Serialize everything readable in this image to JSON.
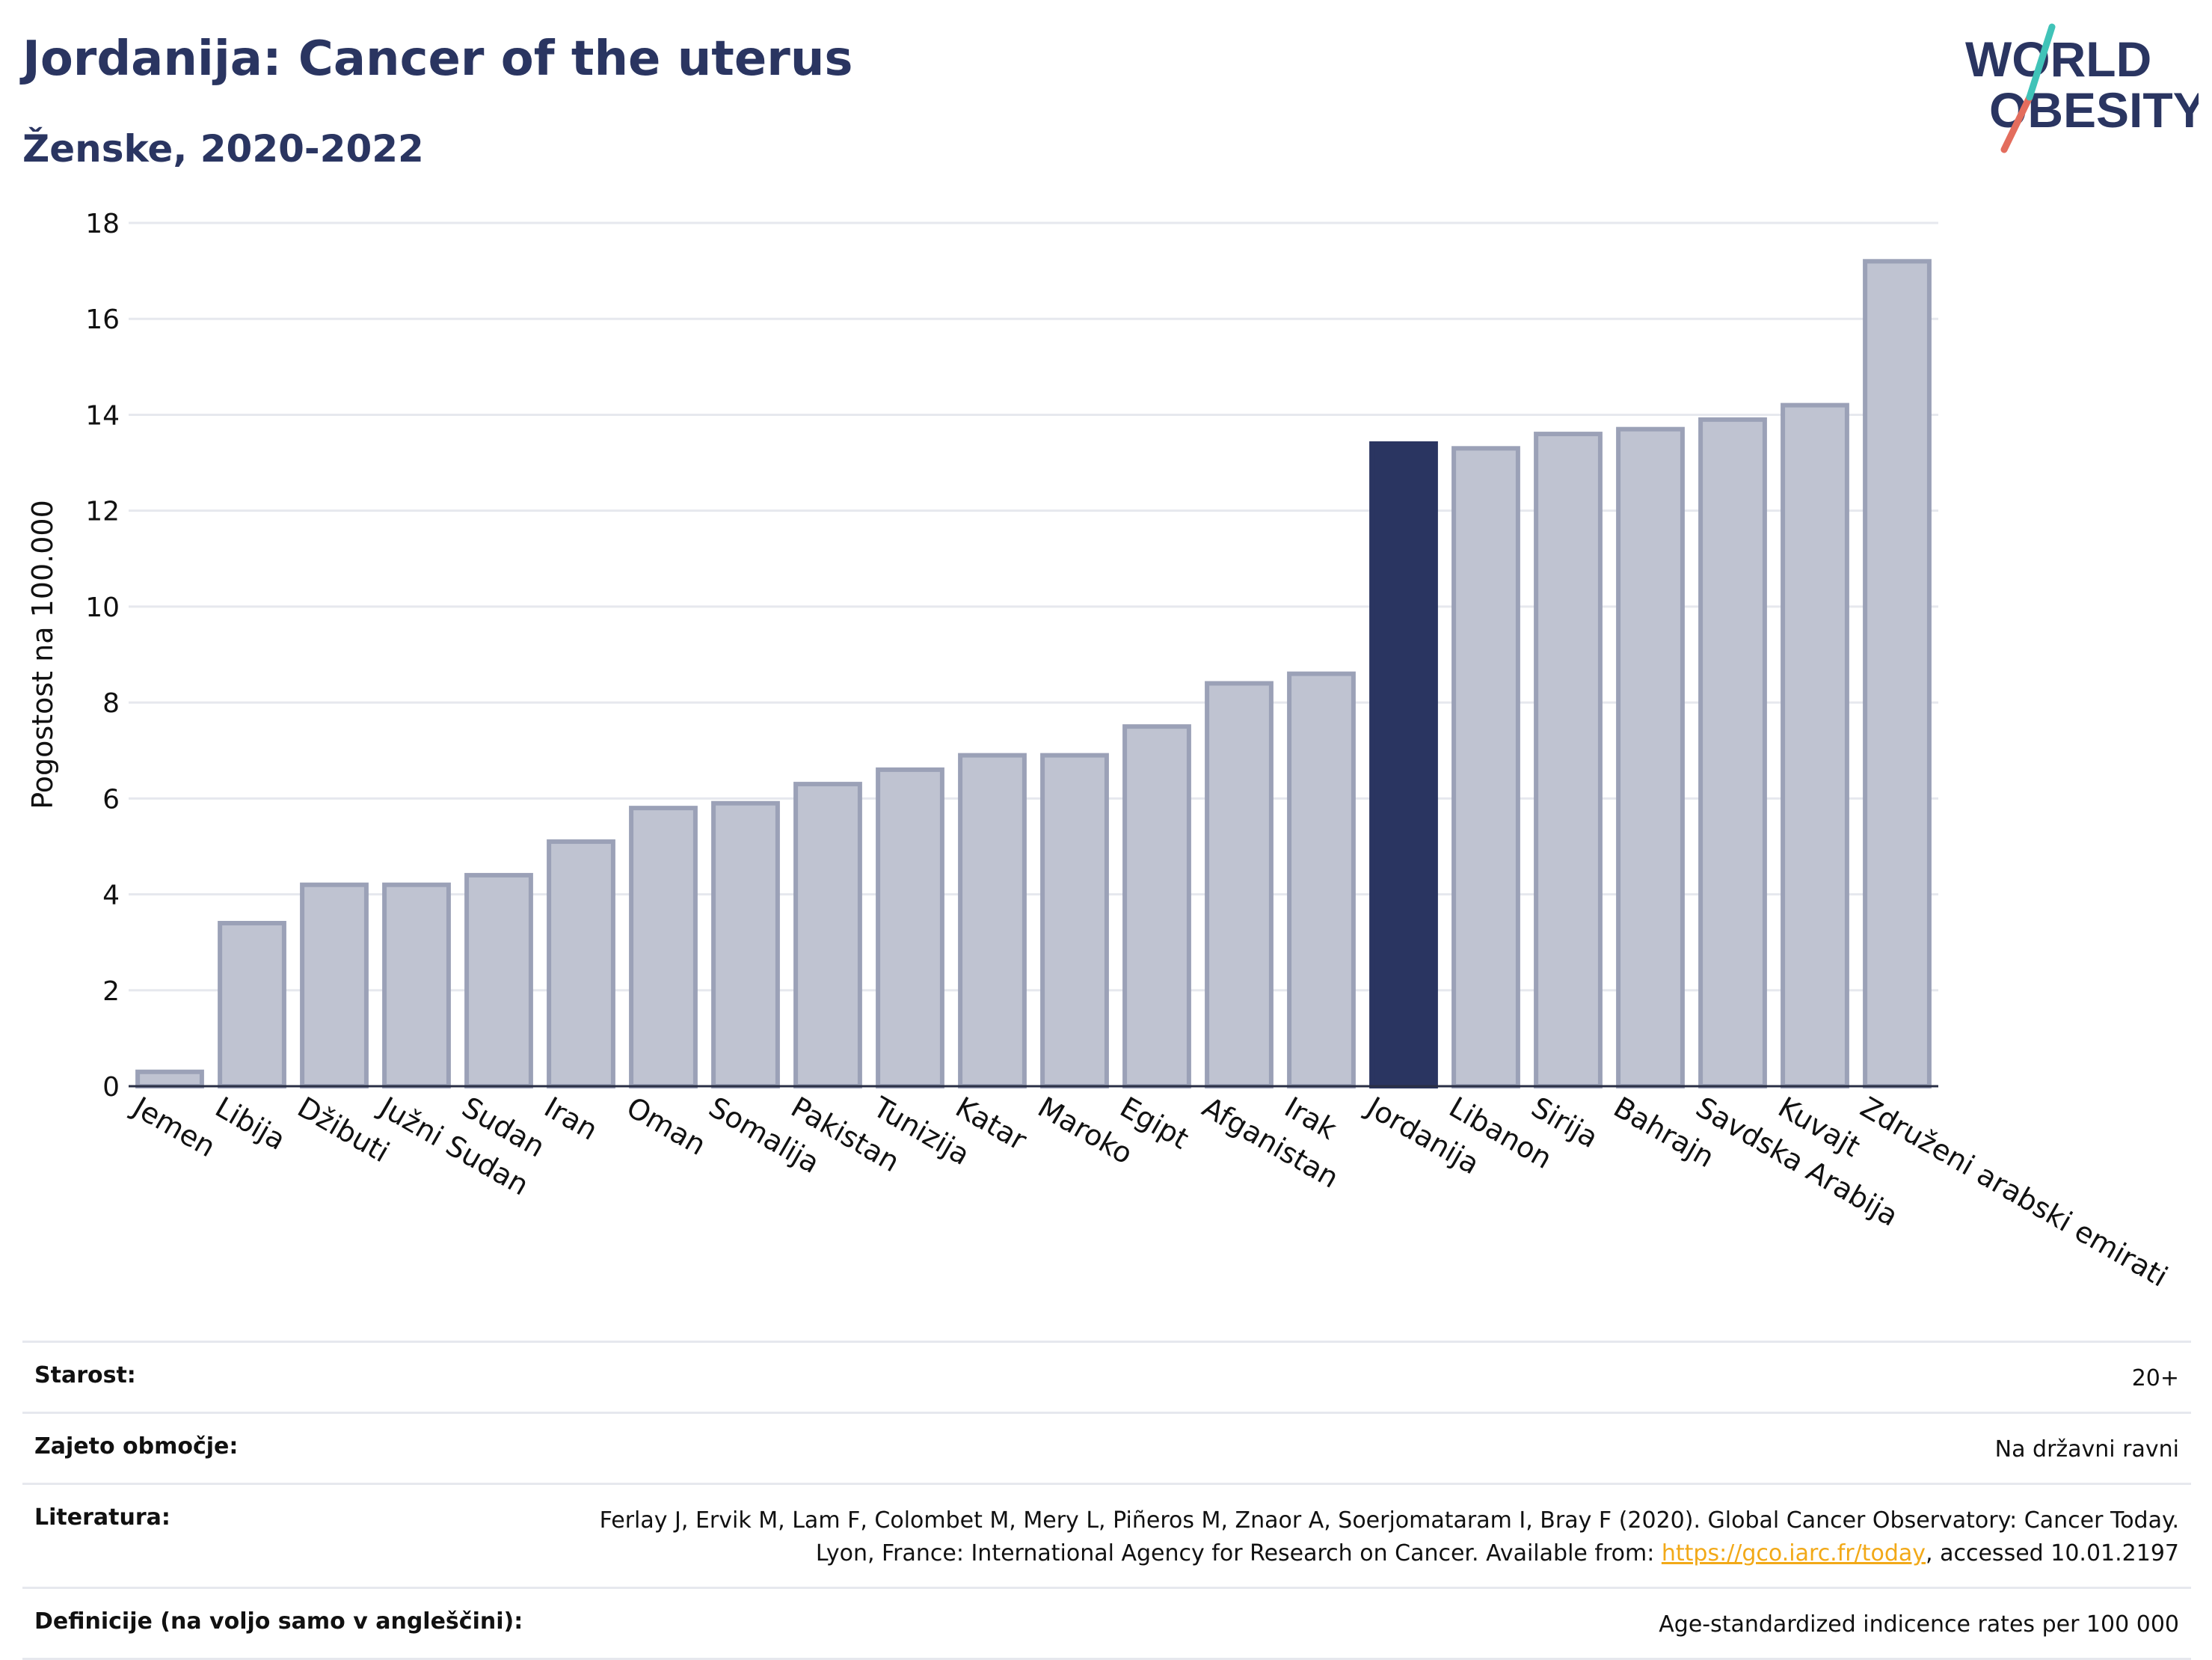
{
  "header": {
    "title": "Jordanija: Cancer of the uterus",
    "subtitle": "Ženske, 2020-2022"
  },
  "logo": {
    "line1": "WORLD",
    "line2": "OBESITY"
  },
  "colors": {
    "highlight": "#2a3561",
    "bar_fill": "#bfc3d1",
    "bar_stroke": "#9ba1b7",
    "grid": "#e6e8ee",
    "logo_teal": "#40c3b8",
    "logo_red": "#e36d5d"
  },
  "chart_data": {
    "type": "bar",
    "title": "Jordanija: Cancer of the uterus",
    "subtitle": "Ženske, 2020-2022",
    "ylabel": "Pogostost na 100.000",
    "xlabel": "",
    "ylim": [
      0,
      18
    ],
    "yticks": [
      0,
      2,
      4,
      6,
      8,
      10,
      12,
      14,
      16,
      18
    ],
    "grid": true,
    "highlight_category": "Jordanija",
    "categories": [
      "Jemen",
      "Libija",
      "Džibuti",
      "Južni Sudan",
      "Sudan",
      "Iran",
      "Oman",
      "Somalija",
      "Pakistan",
      "Tunizija",
      "Katar",
      "Maroko",
      "Egipt",
      "Afganistan",
      "Irak",
      "Jordanija",
      "Libanon",
      "Sirija",
      "Bahrajn",
      "Savdska Arabija",
      "Kuvajt",
      "Združeni arabski emirati"
    ],
    "values": [
      0.3,
      3.4,
      4.2,
      4.2,
      4.4,
      5.1,
      5.8,
      5.9,
      6.3,
      6.6,
      6.9,
      6.9,
      7.5,
      8.4,
      8.6,
      13.4,
      13.3,
      13.6,
      13.7,
      13.9,
      14.2,
      17.2
    ]
  },
  "info": {
    "age_label": "Starost:",
    "age_value": "20+",
    "coverage_label": "Zajeto območje:",
    "coverage_value": "Na državni ravni",
    "literature_label": "Literatura:",
    "literature_before": "Ferlay J, Ervik M, Lam F, Colombet M, Mery L, Piñeros M, Znaor A, Soerjomataram I, Bray F (2020). Global Cancer Observatory: Cancer Today. Lyon, France: International Agency for Research on Cancer. Available from: ",
    "literature_link": "https://gco.iarc.fr/today",
    "literature_after": ", accessed 10.01.2197",
    "definitions_label": "Definicije (na voljo samo v angleščini):",
    "definitions_value": "Age-standardized indicence rates per 100 000"
  }
}
